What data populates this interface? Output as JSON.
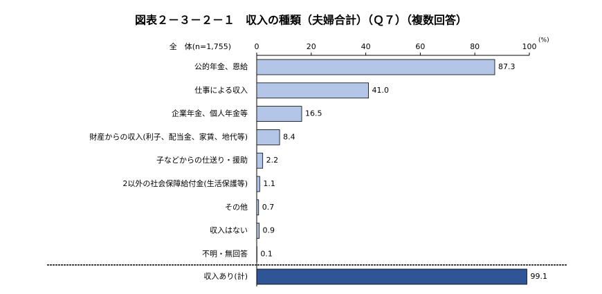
{
  "chart_data": {
    "type": "barh",
    "title": "図表２－３－２－１　収入の種類（夫婦合計）（Ｑ７）（複数回答）",
    "group_label": "全　体(n=1,755)",
    "unit": "(%)",
    "categories": [
      "公的年金、恩給",
      "仕事による収入",
      "企業年金、個人年金等",
      "財産からの収入(利子、配当金、家賃、地代等)",
      "子などからの仕送り・援助",
      "2以外の社会保障給付金(生活保護等)",
      "その他",
      "収入はない",
      "不明・無回答",
      "収入あり(計)"
    ],
    "values": [
      87.3,
      41.0,
      16.5,
      8.4,
      2.2,
      1.1,
      0.7,
      0.9,
      0.1,
      99.1
    ],
    "value_labels": [
      "87.3",
      "41.0",
      "16.5",
      "8.4",
      "2.2",
      "1.1",
      "0.7",
      "0.9",
      "0.1",
      "99.1"
    ],
    "colors": [
      "#b4c6e7",
      "#b4c6e7",
      "#b4c6e7",
      "#b4c6e7",
      "#b4c6e7",
      "#b4c6e7",
      "#b4c6e7",
      "#b4c6e7",
      "#b4c6e7",
      "#2f5597"
    ],
    "xlim": [
      0,
      100
    ],
    "xticks": [
      0,
      20,
      40,
      60,
      80,
      100
    ],
    "grid": false
  }
}
